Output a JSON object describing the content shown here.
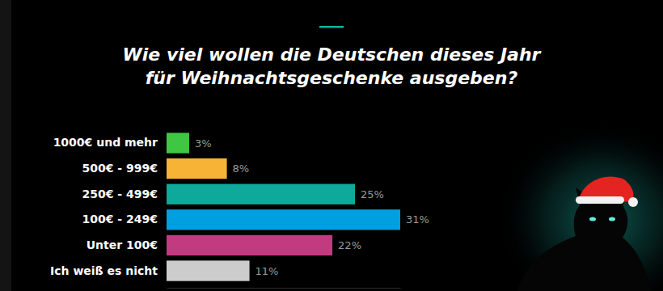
{
  "chart_data": {
    "type": "bar",
    "orientation": "horizontal",
    "title": "Wie viel wollen die Deutschen dieses Jahr\nfür Weihnachtsgeschenke ausgeben?",
    "categories": [
      "1000€ und mehr",
      "500€ - 999€",
      "250€ - 499€",
      "100€ - 249€",
      "Unter 100€",
      "Ich weiß es nicht"
    ],
    "values": [
      3,
      8,
      25,
      31,
      22,
      11
    ],
    "value_labels": [
      "3%",
      "8%",
      "25%",
      "31%",
      "22%",
      "11%"
    ],
    "colors": [
      "#3fc744",
      "#f6b335",
      "#0ea99a",
      "#00a0e0",
      "#c23a80",
      "#cccccc"
    ],
    "xlim": [
      0,
      31
    ],
    "data_labels": true,
    "tick_labels": "y",
    "grid": false
  }
}
